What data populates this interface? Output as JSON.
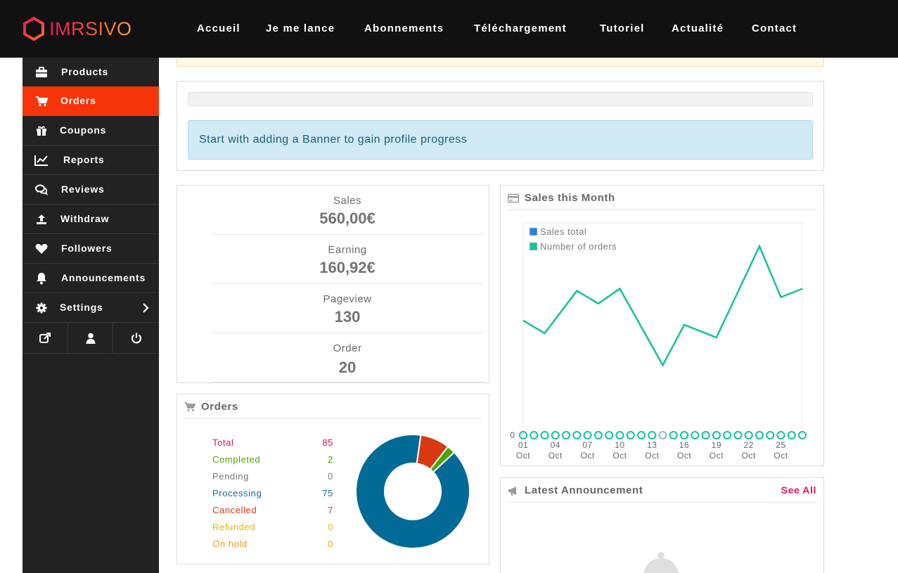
{
  "brand": {
    "logo_text": "IMRSIVO"
  },
  "nav": [
    "Accueil",
    "Je me lance",
    "Abonnements",
    "Téléchargement",
    "Tutoriel",
    "Actualité",
    "Contact"
  ],
  "sidebar": {
    "items": [
      {
        "label": "Products",
        "icon": "briefcase-icon"
      },
      {
        "label": "Orders",
        "icon": "cart-icon",
        "active": true
      },
      {
        "label": "Coupons",
        "icon": "gift-icon"
      },
      {
        "label": "Reports",
        "icon": "line-chart-icon"
      },
      {
        "label": "Reviews",
        "icon": "comments-icon"
      },
      {
        "label": "Withdraw",
        "icon": "upload-icon"
      },
      {
        "label": "Followers",
        "icon": "heart-icon"
      },
      {
        "label": "Announcements",
        "icon": "bell-icon"
      },
      {
        "label": "Settings",
        "icon": "gear-icon"
      }
    ],
    "bottom_icons": [
      "external-link-icon",
      "user-icon",
      "power-icon"
    ]
  },
  "progress": {
    "percent_label": "0%",
    "message": "Start with adding a Banner to gain profile progress"
  },
  "stats": [
    {
      "title": "Sales",
      "value": "560,00€"
    },
    {
      "title": "Earning",
      "value": "160,92€"
    },
    {
      "title": "Pageview",
      "value": "130"
    },
    {
      "title": "Order",
      "value": "20"
    }
  ],
  "orders": {
    "title": "Orders",
    "rows": [
      {
        "label": "Total",
        "count": "85",
        "color": "#d8125b"
      },
      {
        "label": "Completed",
        "count": "2",
        "color": "#4ca300"
      },
      {
        "label": "Pending",
        "count": "0",
        "color": "#777777"
      },
      {
        "label": "Processing",
        "count": "75",
        "color": "#106b93"
      },
      {
        "label": "Cancelled",
        "count": "7",
        "color": "#d73a13"
      },
      {
        "label": "Refunded",
        "count": "0",
        "color": "#e6b800"
      },
      {
        "label": "On hold",
        "count": "0",
        "color": "#f29a1c"
      }
    ]
  },
  "sales_month": {
    "title": "Sales this Month"
  },
  "announcement": {
    "title": "Latest Announcement",
    "see_all": "See All"
  },
  "chart_data": {
    "type": "line",
    "title": "Sales this Month",
    "legend_position": "top-left",
    "x_tick_labels": [
      [
        "01",
        "Oct"
      ],
      [
        "04",
        "Oct"
      ],
      [
        "07",
        "Oct"
      ],
      [
        "10",
        "Oct"
      ],
      [
        "13",
        "Oct"
      ],
      [
        "16",
        "Oct"
      ],
      [
        "19",
        "Oct"
      ],
      [
        "22",
        "Oct"
      ],
      [
        "25",
        "Oct"
      ]
    ],
    "y_tick_labels": [
      "0"
    ],
    "series": [
      {
        "name": "Sales total",
        "color": "#1aa8e2",
        "x": [
          1,
          3,
          6,
          8,
          10,
          14,
          16,
          19,
          23,
          25,
          27
        ],
        "values": [
          0.54,
          0.48,
          0.68,
          0.62,
          0.69,
          0.33,
          0.52,
          0.46,
          0.89,
          0.65,
          0.69
        ]
      },
      {
        "name": "Number of orders",
        "color": "#10c39b",
        "x": [
          1,
          2,
          3,
          4,
          5,
          6,
          7,
          8,
          9,
          10,
          11,
          12,
          13,
          14,
          15,
          16,
          17,
          18,
          19,
          20,
          21,
          22,
          23,
          24,
          25,
          26,
          27
        ],
        "values": [
          0,
          0,
          0,
          0,
          0,
          0,
          0,
          0,
          0,
          0,
          0,
          0,
          0,
          0,
          0,
          0,
          0,
          0,
          0,
          0,
          0,
          0,
          0,
          0,
          0,
          0,
          0
        ]
      }
    ]
  }
}
